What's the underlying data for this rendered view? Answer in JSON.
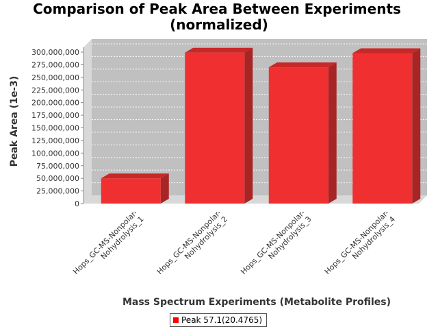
{
  "chart_data": {
    "type": "bar",
    "title": "Comparison of Peak Area Between Experiments",
    "subtitle": "(normalized)",
    "xlabel": "Mass Spectrum Experiments (Metabolite Profiles)",
    "ylabel": "Peak Area (1e-3)",
    "categories": [
      "Hops_GC-MS-Nonpolar-Nohydrolysis_1",
      "Hops_GC-MS-Nonpolar-Nohydrolysis_2",
      "Hops_GC-MS-Nonpolar-Nohydrolysis_3",
      "Hops_GC-MS-Nonpolar-Nohydrolysis_4"
    ],
    "category_label_lines": [
      [
        "Hops_GC-MS-Nonpolar-",
        "Nohydrolysis_1"
      ],
      [
        "Hops_GC-MS-Nonpolar-",
        "Nohydrolysis_2"
      ],
      [
        "Hops_GC-MS-Nonpolar-",
        "Nohydrolysis_3"
      ],
      [
        "Hops_GC-MS-Nonpolar-",
        "Nohydrolysis_4"
      ]
    ],
    "series": [
      {
        "name": "Peak 57.1(20.4765)",
        "values": [
          50000000,
          299000000,
          270000000,
          298000000
        ]
      }
    ],
    "ylim": [
      0,
      300000000
    ],
    "yticks": [
      0,
      25000000,
      50000000,
      75000000,
      100000000,
      125000000,
      150000000,
      175000000,
      200000000,
      225000000,
      250000000,
      275000000,
      300000000
    ],
    "ytick_labels": [
      "0",
      "25,000,000",
      "50,000,000",
      "75,000,000",
      "100,000,000",
      "125,000,000",
      "150,000,000",
      "175,000,000",
      "200,000,000",
      "225,000,000",
      "250,000,000",
      "275,000,000",
      "300,000,000"
    ],
    "grid": true,
    "three_d": true,
    "legend_position": "bottom-center",
    "colors": {
      "bar_front": "#f03030",
      "bar_top": "#c82828",
      "bar_side": "#a82525",
      "plot_background": "#c0c0c0",
      "wall": "#d8d8d8"
    }
  }
}
